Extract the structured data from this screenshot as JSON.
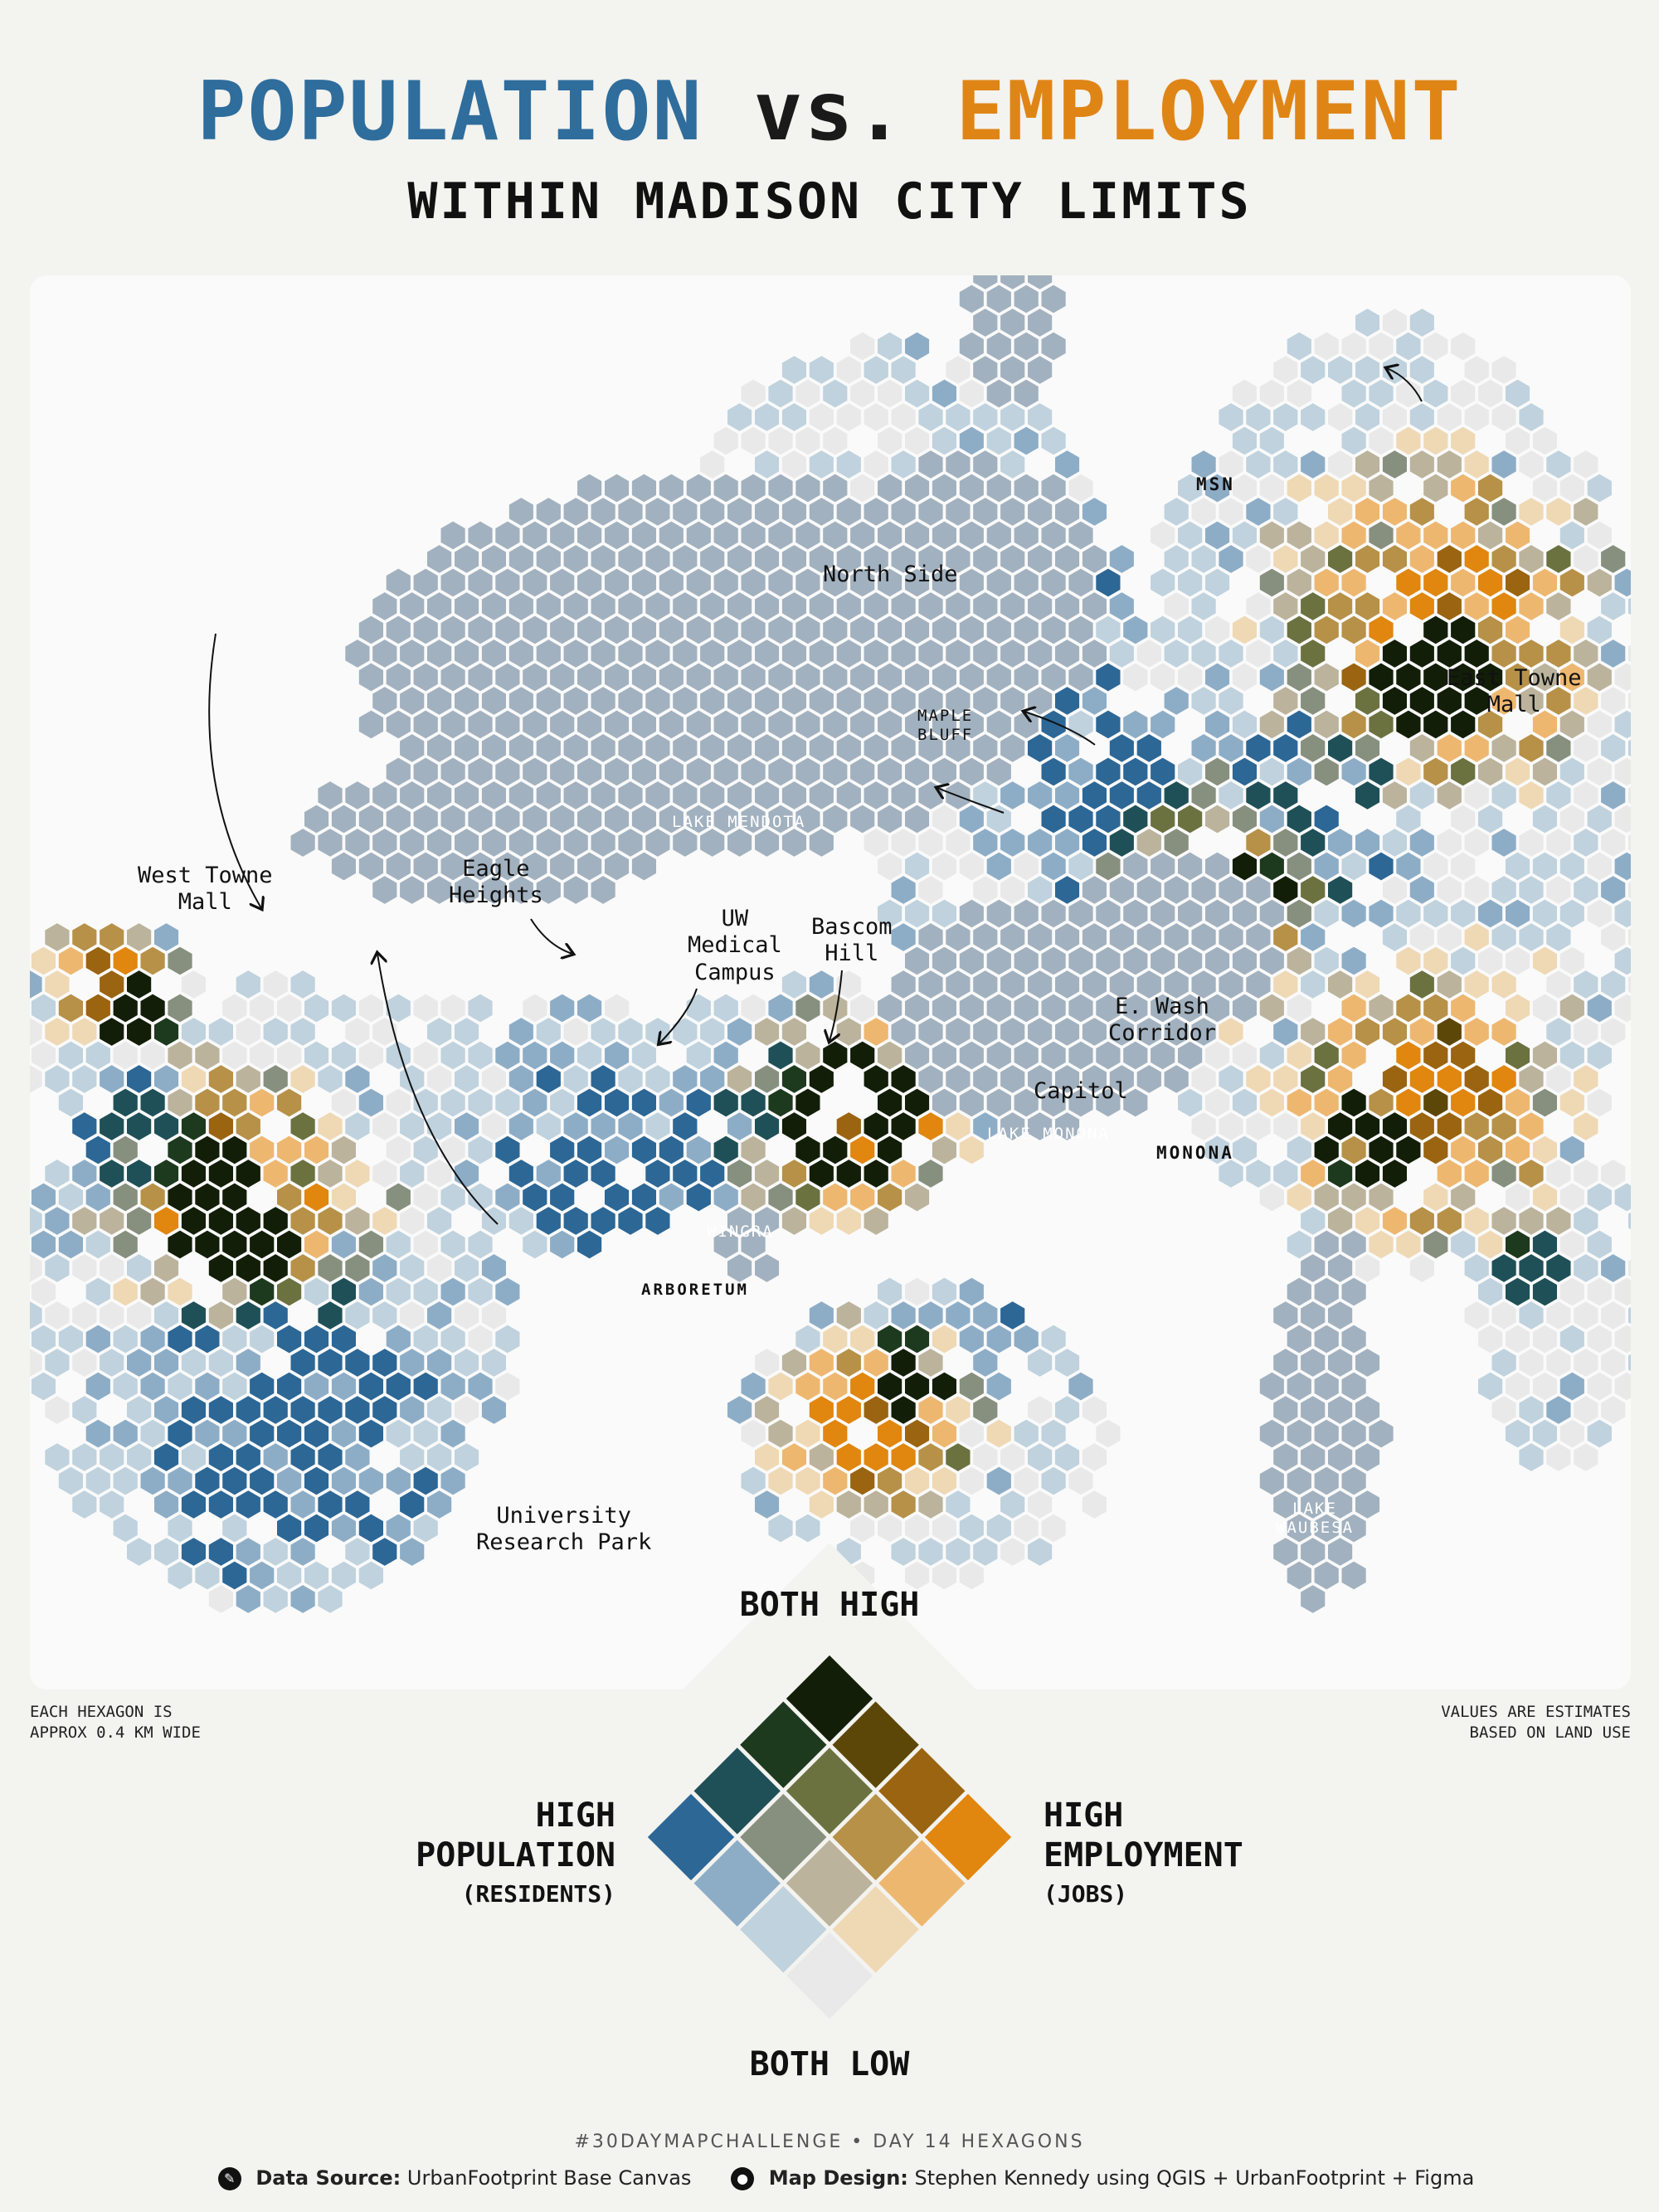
{
  "title": {
    "population": "POPULATION",
    "vs": "vs.",
    "employment": "EMPLOYMENT"
  },
  "subtitle": "WITHIN MADISON CITY LIMITS",
  "colors": {
    "population": "#2f6d9c",
    "employment": "#df8516",
    "water": "#a2b1bf",
    "panel": "#fafafa",
    "background": "#f3f3ef"
  },
  "bivariate_palette": [
    [
      "#e9e9e9",
      "#efd8b4",
      "#eeb770",
      "#e1860e"
    ],
    [
      "#bfd2de",
      "#bbb39c",
      "#b79148",
      "#9b6410"
    ],
    [
      "#8dadc7",
      "#87907e",
      "#6b7240",
      "#5c4708"
    ],
    [
      "#2c6796",
      "#1f5057",
      "#1e3a1e",
      "#121e07"
    ]
  ],
  "map_labels": [
    {
      "id": "north-side",
      "text": "North Side"
    },
    {
      "id": "msn",
      "text": "MSN"
    },
    {
      "id": "east-towne",
      "text": "East Towne\nMall"
    },
    {
      "id": "maple-bluff",
      "text": "MAPLE\nBLUFF"
    },
    {
      "id": "lake-mendota",
      "text": "LAKE MENDOTA"
    },
    {
      "id": "eagle-heights",
      "text": "Eagle\nHeights"
    },
    {
      "id": "west-towne",
      "text": "West Towne\nMall"
    },
    {
      "id": "uw-medical",
      "text": "UW\nMedical\nCampus"
    },
    {
      "id": "bascom-hill",
      "text": "Bascom\nHill"
    },
    {
      "id": "e-wash",
      "text": "E. Wash\nCorridor"
    },
    {
      "id": "capitol",
      "text": "Capitol"
    },
    {
      "id": "lake-monona",
      "text": "LAKE MONONA"
    },
    {
      "id": "monona",
      "text": "MONONA"
    },
    {
      "id": "wingra",
      "text": "WINGRA"
    },
    {
      "id": "arboretum",
      "text": "ARBORETUM"
    },
    {
      "id": "university-research-park",
      "text": "University\nResearch Park"
    },
    {
      "id": "lake-waubesa",
      "text": "LAKE\nWAUBESA"
    }
  ],
  "notes": {
    "hex_size": "EACH HEXAGON IS\nAPPROX 0.4 KM WIDE",
    "estimates": "VALUES ARE ESTIMATES\nBASED ON LAND USE"
  },
  "legend": {
    "top": "BOTH HIGH",
    "bottom": "BOTH LOW",
    "left_title": "HIGH\nPOPULATION",
    "left_sub": "(RESIDENTS)",
    "right_title": "HIGH\nEMPLOYMENT",
    "right_sub": "(JOBS)"
  },
  "footer": {
    "tag": "#30DAYMAPCHALLENGE • DAY 14 HEXAGONS",
    "source_label": "Data Source:",
    "source_value": "UrbanFootprint Base Canvas",
    "design_label": "Map Design:",
    "design_value": "Stephen Kennedy using QGIS + UrbanFootprint + Figma"
  }
}
